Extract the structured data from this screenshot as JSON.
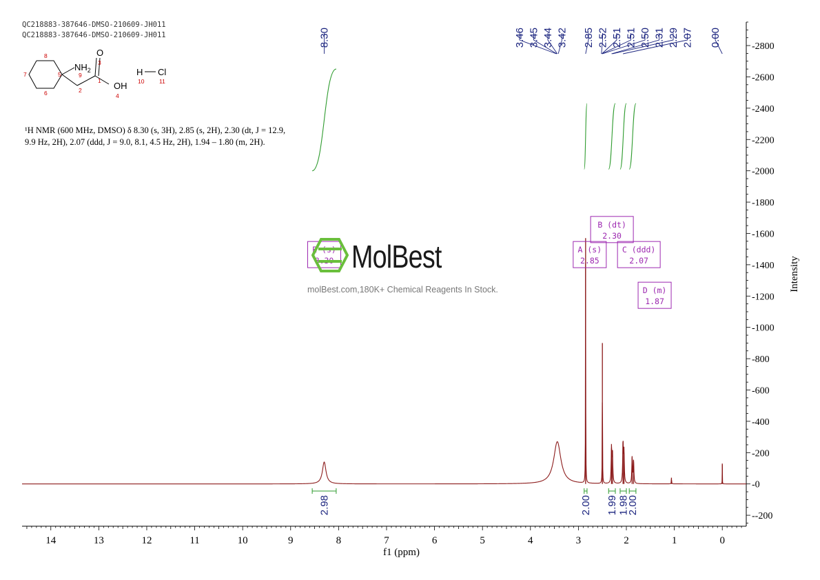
{
  "header": {
    "line1": "QC218883-387646-DMSO-210609-JH011",
    "line2": "QC218883-387646-DMSO-210609-JH011"
  },
  "structure": {
    "nh2": "NH",
    "nh2_sub": "2",
    "o": "O",
    "oh": "OH",
    "h": "H",
    "cl": "Cl",
    "atom_numbers": [
      "8",
      "7",
      "6",
      "5",
      "9",
      "3",
      "2",
      "1",
      "4",
      "10",
      "11"
    ]
  },
  "nmr_description": "¹H NMR (600 MHz, DMSO) δ 8.30 (s, 3H), 2.85 (s, 2H), 2.30 (dt, J = 12.9, 9.9 Hz, 2H), 2.07 (ddd, J = 9.0, 8.1, 4.5 Hz, 2H), 1.94 – 1.80 (m, 2H).",
  "watermark": {
    "brand": "MolBest",
    "text": "molBest.com,180K+ Chemical Reagents In Stock."
  },
  "colors": {
    "spectrum": "#8b1a1a",
    "integral": "#2e9b2e",
    "peak_label": "#1a237e",
    "annotation": "#9c27b0",
    "watermark_icon": "#6abf3c"
  },
  "chart_data": {
    "type": "line",
    "xlabel": "f1 (ppm)",
    "ylabel": "Intensity",
    "x_reversed": true,
    "xlim": [
      14.6,
      -0.5
    ],
    "ylim": [
      -270,
      2950
    ],
    "x_ticks": [
      14,
      13,
      12,
      11,
      10,
      9,
      8,
      7,
      6,
      5,
      4,
      3,
      2,
      1,
      0
    ],
    "y_ticks": [
      -200,
      0,
      200,
      400,
      600,
      800,
      1000,
      1200,
      1400,
      1600,
      1800,
      2000,
      2200,
      2400,
      2600,
      2800
    ],
    "peaks": [
      {
        "ppm": 8.3,
        "height": 140,
        "width": 0.045
      },
      {
        "ppm": 3.44,
        "height": 270,
        "width": 0.09
      },
      {
        "ppm": 2.85,
        "height": 1570,
        "width": 0.003
      },
      {
        "ppm": 2.5,
        "height": 900,
        "width": 0.003
      },
      {
        "ppm": 2.31,
        "height": 230,
        "width": 0.008
      },
      {
        "ppm": 2.29,
        "height": 200,
        "width": 0.008
      },
      {
        "ppm": 2.07,
        "height": 270,
        "width": 0.008
      },
      {
        "ppm": 2.05,
        "height": 200,
        "width": 0.008
      },
      {
        "ppm": 1.88,
        "height": 170,
        "width": 0.008
      },
      {
        "ppm": 1.85,
        "height": 150,
        "width": 0.008
      },
      {
        "ppm": 1.06,
        "height": 40,
        "width": 0.004
      },
      {
        "ppm": 0.0,
        "height": 130,
        "width": 0.002
      }
    ],
    "peak_labels_left": [
      "8.30"
    ],
    "peak_labels_right": [
      "3.46",
      "3.45",
      "3.44",
      "3.42",
      "2.85",
      "2.52",
      "2.51",
      "2.51",
      "2.50",
      "2.31",
      "2.29",
      "2.07",
      "0.00"
    ],
    "integrals": [
      {
        "from": 8.55,
        "to": 8.05,
        "value": "2.98",
        "curve_from": 2000,
        "curve_to": 2650
      },
      {
        "from": 2.88,
        "to": 2.82,
        "value": "2.00",
        "curve_from": 2010,
        "curve_to": 2430
      },
      {
        "from": 2.37,
        "to": 2.23,
        "value": "1.99",
        "curve_from": 2010,
        "curve_to": 2430
      },
      {
        "from": 2.13,
        "to": 2.0,
        "value": "1.98",
        "curve_from": 2010,
        "curve_to": 2430
      },
      {
        "from": 1.94,
        "to": 1.8,
        "value": "2.00",
        "curve_from": 2010,
        "curve_to": 2430
      }
    ],
    "annotations": [
      {
        "label": "E (s)",
        "value": "8.30",
        "ppm": 8.3,
        "y": 1390
      },
      {
        "label": "A (s)",
        "value": "2.85",
        "ppm": 2.85,
        "y": 1390
      },
      {
        "label": "B (dt)",
        "value": "2.30",
        "ppm": 2.3,
        "y": 1550
      },
      {
        "label": "C (ddd)",
        "value": "2.07",
        "ppm": 2.07,
        "y": 1390
      },
      {
        "label": "D (m)",
        "value": "1.87",
        "ppm": 1.87,
        "y": 1130
      }
    ]
  }
}
